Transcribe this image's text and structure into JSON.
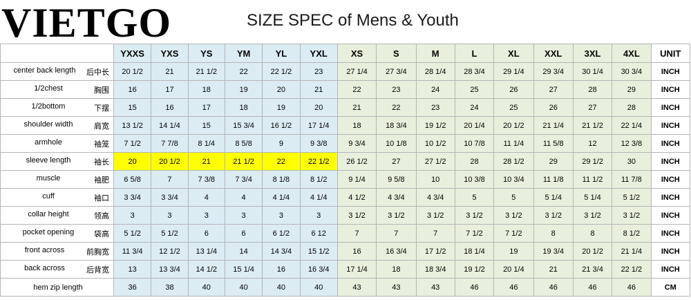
{
  "header": {
    "logo": "VIETGO",
    "title": "SIZE SPEC of Mens & Youth"
  },
  "table": {
    "columns": [
      "YXXS",
      "YXS",
      "YS",
      "YM",
      "YL",
      "YXL",
      "XS",
      "S",
      "M",
      "L",
      "XL",
      "XXL",
      "3XL",
      "4XL"
    ],
    "unit_header": "UNIT",
    "rows": [
      {
        "label": "center back length",
        "label_zh": "后中长",
        "values": [
          "20 1/2",
          "21",
          "21 1/2",
          "22",
          "22 1/2",
          "23",
          "27 1/4",
          "27 3/4",
          "28 1/4",
          "28 3/4",
          "29 1/4",
          "29 3/4",
          "30 1/4",
          "30 3/4"
        ],
        "unit": "INCH"
      },
      {
        "label": "1/2chest",
        "label_zh": "胸围",
        "values": [
          "16",
          "17",
          "18",
          "19",
          "20",
          "21",
          "22",
          "23",
          "24",
          "25",
          "26",
          "27",
          "28",
          "29"
        ],
        "unit": "INCH"
      },
      {
        "label": "1/2bottom",
        "label_zh": "下摆",
        "values": [
          "15",
          "16",
          "17",
          "18",
          "19",
          "20",
          "21",
          "22",
          "23",
          "24",
          "25",
          "26",
          "27",
          "28"
        ],
        "unit": "INCH"
      },
      {
        "label": "shoulder width",
        "label_zh": "肩宽",
        "values": [
          "13 1/2",
          "14 1/4",
          "15",
          "15 3/4",
          "16 1/2",
          "17 1/4",
          "18",
          "18 3/4",
          "19 1/2",
          "20 1/4",
          "20 1/2",
          "21 1/4",
          "21 1/2",
          "22 1/4"
        ],
        "unit": "INCH"
      },
      {
        "label": "armhole",
        "label_zh": "袖笼",
        "values": [
          "7 1/2",
          "7 7/8",
          "8 1/4",
          "8 5/8",
          "9",
          "9 3/8",
          "9 3/4",
          "10 1/8",
          "10 1/2",
          "10 7/8",
          "11 1/4",
          "11 5/8",
          "12",
          "12 3/8"
        ],
        "unit": "INCH"
      },
      {
        "label": "sleeve length",
        "label_zh": "袖长",
        "values": [
          "20",
          "20 1/2",
          "21",
          "21 1/2",
          "22",
          "22 1/2",
          "26 1/2",
          "27",
          "27 1/2",
          "28",
          "28 1/2",
          "29",
          "29 1/2",
          "30"
        ],
        "unit": "INCH",
        "highlight": true
      },
      {
        "label": "muscle",
        "label_zh": "袖肥",
        "values": [
          "6 5/8",
          "7",
          "7 3/8",
          "7 3/4",
          "8 1/8",
          "8 1/2",
          "9 1/4",
          "9 5/8",
          "10",
          "10 3/8",
          "10 3/4",
          "11 1/8",
          "11 1/2",
          "11 7/8"
        ],
        "unit": "INCH"
      },
      {
        "label": "cuff",
        "label_zh": "袖口",
        "values": [
          "3 3/4",
          "3  3/4",
          "4",
          "4",
          "4  1/4",
          "4  1/4",
          "4 1/2",
          "4 3/4",
          "4 3/4",
          "5",
          "5",
          "5 1/4",
          "5 1/4",
          "5 1/2"
        ],
        "unit": "INCH"
      },
      {
        "label": "collar height",
        "label_zh": "领高",
        "values": [
          "3",
          "3",
          "3",
          "3",
          "3",
          "3",
          "3 1/2",
          "3 1/2",
          "3 1/2",
          "3 1/2",
          "3 1/2",
          "3 1/2",
          "3 1/2",
          "3 1/2"
        ],
        "unit": "INCH"
      },
      {
        "label": "pocket opening",
        "label_zh": "袋高",
        "values": [
          "5  1/2",
          "5  1/2",
          "6",
          "6",
          "6  1/2",
          "6  12",
          "7",
          "7",
          "7",
          "7 1/2",
          "7 1/2",
          "8",
          "8",
          "8 1/2"
        ],
        "unit": "INCH"
      },
      {
        "label": "front across",
        "label_zh": "前胸宽",
        "values": [
          "11 3/4",
          "12 1/2",
          "13 1/4",
          "14",
          "14 3/4",
          "15 1/2",
          "16",
          "16 3/4",
          "17 1/2",
          "18 1/4",
          "19",
          "19 3/4",
          "20 1/2",
          "21 1/4"
        ],
        "unit": "INCH"
      },
      {
        "label": "back across",
        "label_zh": "后背宽",
        "values": [
          "13",
          "13 3/4",
          "14 1/2",
          "15 1/4",
          "16",
          "16 3/4",
          "17 1/4",
          "18",
          "18 3/4",
          "19 1/2",
          "20 1/4",
          "21",
          "21 3/4",
          "22 1/2"
        ],
        "unit": "INCH"
      },
      {
        "label": "hem zip length",
        "label_zh": "",
        "values": [
          "36",
          "38",
          "40",
          "40",
          "40",
          "40",
          "43",
          "43",
          "43",
          "46",
          "46",
          "46",
          "46",
          "46"
        ],
        "unit": "CM"
      }
    ]
  },
  "colors": {
    "youth_bg": "#dbecf3",
    "mens_bg": "#e8efdc",
    "highlight": "#ffff00"
  }
}
